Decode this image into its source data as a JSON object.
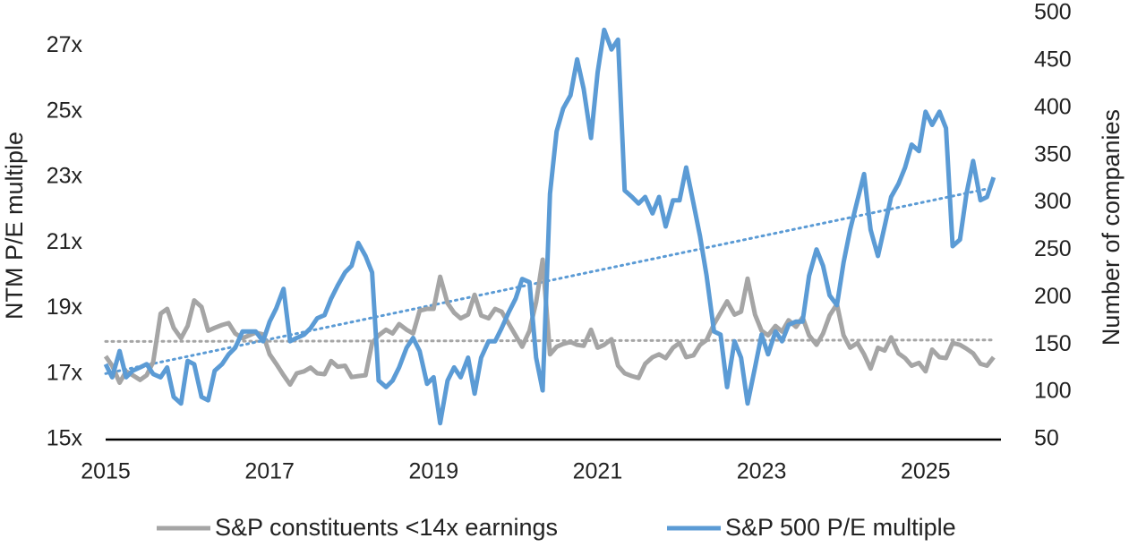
{
  "chart_data": {
    "type": "line",
    "ylabel": "NTM P/E multiple",
    "y2label": "Number of companies",
    "x": [
      2015,
      2015.08,
      2015.17,
      2015.25,
      2015.33,
      2015.42,
      2015.5,
      2015.58,
      2015.67,
      2015.75,
      2015.83,
      2015.92,
      2016,
      2016.08,
      2016.17,
      2016.25,
      2016.33,
      2016.42,
      2016.5,
      2016.58,
      2016.67,
      2016.75,
      2016.83,
      2016.92,
      2017,
      2017.08,
      2017.17,
      2017.25,
      2017.33,
      2017.42,
      2017.5,
      2017.58,
      2017.67,
      2017.75,
      2017.83,
      2017.92,
      2018,
      2018.08,
      2018.17,
      2018.25,
      2018.33,
      2018.42,
      2018.5,
      2018.58,
      2018.67,
      2018.75,
      2018.83,
      2018.92,
      2019,
      2019.08,
      2019.17,
      2019.25,
      2019.33,
      2019.42,
      2019.5,
      2019.58,
      2019.67,
      2019.75,
      2019.83,
      2019.92,
      2020,
      2020.08,
      2020.17,
      2020.25,
      2020.33,
      2020.42,
      2020.5,
      2020.58,
      2020.67,
      2020.75,
      2020.83,
      2020.92,
      2021,
      2021.08,
      2021.17,
      2021.25,
      2021.33,
      2021.42,
      2021.5,
      2021.58,
      2021.67,
      2021.75,
      2021.83,
      2021.92,
      2022,
      2022.08,
      2022.17,
      2022.25,
      2022.33,
      2022.42,
      2022.5,
      2022.58,
      2022.67,
      2022.75,
      2022.83,
      2022.92,
      2023,
      2023.08,
      2023.17,
      2023.25,
      2023.33,
      2023.42,
      2023.5,
      2023.58,
      2023.67,
      2023.75,
      2023.83,
      2023.92,
      2024,
      2024.08,
      2024.17,
      2024.25,
      2024.33,
      2024.42,
      2024.5,
      2024.58,
      2024.67,
      2024.75,
      2024.83,
      2024.92,
      2025,
      2025.08,
      2025.17,
      2025.25,
      2025.33,
      2025.42,
      2025.5,
      2025.58,
      2025.67,
      2025.75,
      2025.83
    ],
    "series": [
      {
        "name": "S&P constituents <14x earnings",
        "color": "#a5a5a5",
        "axis": "y2",
        "trendline": true,
        "values": [
          138,
          128,
          110,
          122,
          118,
          113,
          118,
          132,
          183,
          188,
          168,
          157,
          170,
          197,
          190,
          165,
          168,
          171,
          173,
          162,
          157,
          160,
          163,
          161,
          140,
          130,
          118,
          108,
          120,
          122,
          126,
          120,
          119,
          133,
          127,
          128,
          116,
          117,
          118,
          152,
          160,
          166,
          162,
          172,
          166,
          162,
          186,
          188,
          188,
          222,
          194,
          184,
          178,
          182,
          203,
          181,
          178,
          188,
          185,
          172,
          160,
          148,
          165,
          195,
          240,
          140,
          148,
          151,
          153,
          150,
          149,
          166,
          147,
          150,
          156,
          128,
          120,
          117,
          115,
          130,
          137,
          140,
          136,
          147,
          152,
          137,
          139,
          150,
          155,
          172,
          184,
          196,
          182,
          185,
          220,
          182,
          165,
          160,
          170,
          164,
          176,
          169,
          179,
          160,
          150,
          162,
          181,
          193,
          160,
          147,
          152,
          140,
          125,
          147,
          144,
          158,
          141,
          136,
          128,
          131,
          122,
          145,
          137,
          136,
          152,
          150,
          146,
          141,
          130,
          128,
          137
        ]
      },
      {
        "name": "S&P 500 P/E multiple",
        "color": "#5b9bd5",
        "axis": "y",
        "trendline": true,
        "values": [
          17.3,
          16.9,
          17.7,
          16.9,
          17.1,
          17.2,
          17.3,
          17.0,
          16.9,
          17.2,
          16.3,
          16.1,
          17.4,
          17.3,
          16.3,
          16.2,
          17.1,
          17.3,
          17.6,
          17.8,
          18.3,
          18.3,
          18.3,
          18.0,
          18.6,
          19.0,
          19.6,
          18.0,
          18.1,
          18.2,
          18.4,
          18.7,
          18.8,
          19.3,
          19.7,
          20.1,
          20.3,
          21.0,
          20.6,
          20.1,
          16.8,
          16.6,
          16.8,
          17.2,
          17.8,
          18.1,
          17.7,
          16.7,
          16.9,
          15.5,
          16.8,
          17.2,
          16.9,
          17.5,
          16.4,
          17.5,
          18.0,
          18.0,
          18.4,
          18.9,
          19.3,
          19.9,
          19.8,
          17.5,
          16.5,
          22.5,
          24.4,
          25.1,
          25.5,
          26.6,
          25.7,
          24.2,
          26.2,
          27.5,
          26.9,
          27.2,
          22.6,
          22.4,
          22.2,
          22.4,
          21.9,
          22.4,
          21.5,
          22.3,
          22.3,
          23.3,
          22.2,
          21.2,
          20.0,
          18.3,
          18.2,
          16.6,
          18.0,
          17.5,
          16.1,
          17.2,
          18.2,
          17.6,
          18.3,
          18.0,
          18.5,
          18.6,
          18.6,
          20.0,
          20.8,
          20.3,
          19.4,
          19.1,
          20.4,
          21.4,
          22.3,
          23.1,
          21.4,
          20.6,
          21.5,
          22.4,
          22.8,
          23.3,
          24.0,
          23.8,
          25.0,
          24.6,
          25.0,
          24.5,
          20.9,
          21.1,
          22.5,
          23.5,
          22.3,
          22.4,
          23.0
        ]
      }
    ],
    "xlim": [
      2015,
      2025.92
    ],
    "xticks": [
      2015,
      2017,
      2019,
      2021,
      2023,
      2025
    ],
    "ylim": [
      15,
      28
    ],
    "yticks": [
      {
        "value": 15,
        "label": "15x"
      },
      {
        "value": 17,
        "label": "17x"
      },
      {
        "value": 19,
        "label": "19x"
      },
      {
        "value": 21,
        "label": "21x"
      },
      {
        "value": 23,
        "label": "23x"
      },
      {
        "value": 25,
        "label": "25x"
      },
      {
        "value": 27,
        "label": "27x"
      }
    ],
    "y2lim": [
      50,
      500
    ],
    "y2ticks": [
      50,
      100,
      150,
      200,
      250,
      300,
      350,
      400,
      450,
      500
    ],
    "grid": false,
    "legend": "bottom"
  }
}
